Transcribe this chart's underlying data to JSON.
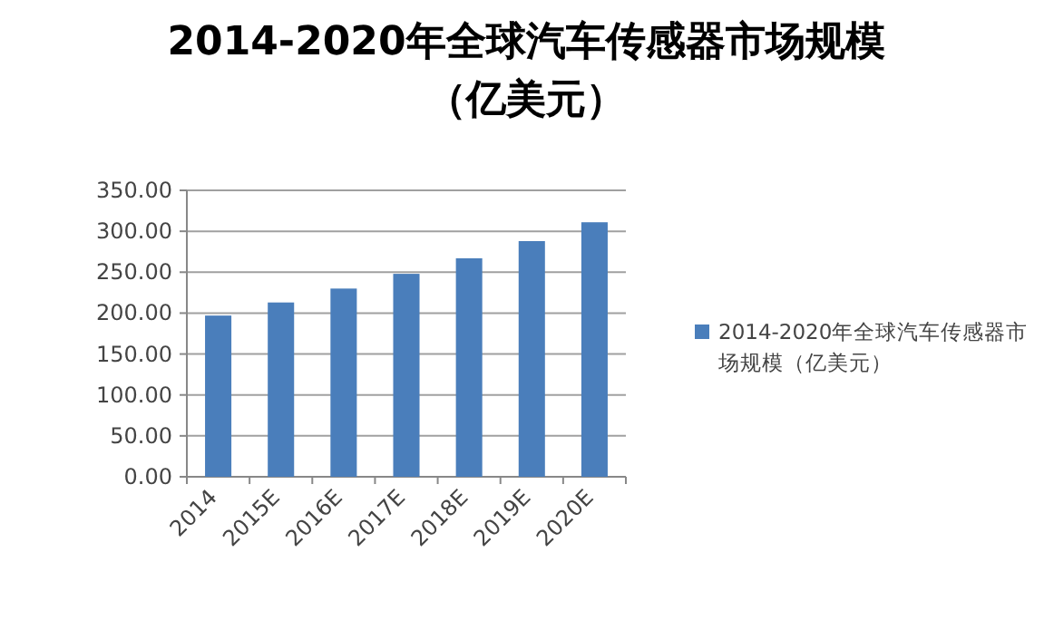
{
  "chart_data": {
    "type": "bar",
    "title": "2014-2020年全球汽车传感器市场规模（亿美元）",
    "categories": [
      "2014",
      "2015E",
      "2016E",
      "2017E",
      "2018E",
      "2019E",
      "2020E"
    ],
    "series": [
      {
        "name": "2014-2020年全球汽车传感器市场规模（亿美元）",
        "color": "#4a7ebb",
        "values": [
          197,
          213,
          230,
          248,
          267,
          288,
          311
        ]
      }
    ],
    "ylim": [
      0,
      350
    ],
    "yticks": [
      {
        "value": 0,
        "label": "0.00"
      },
      {
        "value": 50,
        "label": "50.00"
      },
      {
        "value": 100,
        "label": "100.00"
      },
      {
        "value": 150,
        "label": "150.00"
      },
      {
        "value": 200,
        "label": "200.00"
      },
      {
        "value": 250,
        "label": "250.00"
      },
      {
        "value": 300,
        "label": "300.00"
      },
      {
        "value": 350,
        "label": "350.00"
      }
    ],
    "grid": "y",
    "legend": "right"
  }
}
